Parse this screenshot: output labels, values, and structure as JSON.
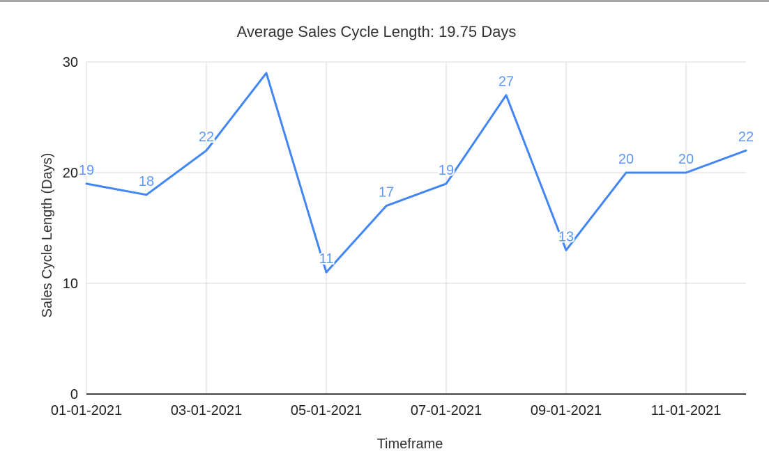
{
  "page": {
    "top_border_color": "#a6a6a6",
    "background_color": "#ffffff"
  },
  "chart_data": {
    "type": "line",
    "title": "Average Sales Cycle Length: 19.75 Days",
    "xlabel": "Timeframe",
    "ylabel": "Sales Cycle Length (Days)",
    "x": [
      "01-01-2021",
      "02-01-2021",
      "03-01-2021",
      "04-01-2021",
      "05-01-2021",
      "06-01-2021",
      "07-01-2021",
      "08-01-2021",
      "09-01-2021",
      "10-01-2021",
      "11-01-2021",
      "12-01-2021"
    ],
    "values": [
      19,
      18,
      22,
      29,
      11,
      17,
      19,
      27,
      13,
      20,
      20,
      22
    ],
    "point_labels": [
      "19",
      "18",
      "22",
      "",
      "11",
      "17",
      "19",
      "27",
      "13",
      "20",
      "20",
      "22"
    ],
    "x_tick_labels": [
      "01-01-2021",
      "03-01-2021",
      "05-01-2021",
      "07-01-2021",
      "09-01-2021",
      "11-01-2021"
    ],
    "y_ticks": [
      0,
      10,
      20,
      30
    ],
    "y_tick_labels": [
      "0",
      "10",
      "20",
      "30"
    ],
    "ylim": [
      0,
      30
    ],
    "grid": true,
    "legend": "none",
    "series_color": "#4285f4",
    "point_label_color": "#5e97f6",
    "grid_color": "#d9d9d9",
    "axis_line_color": "#424242",
    "tick_label_color": "#212121",
    "title_color": "#333333"
  }
}
